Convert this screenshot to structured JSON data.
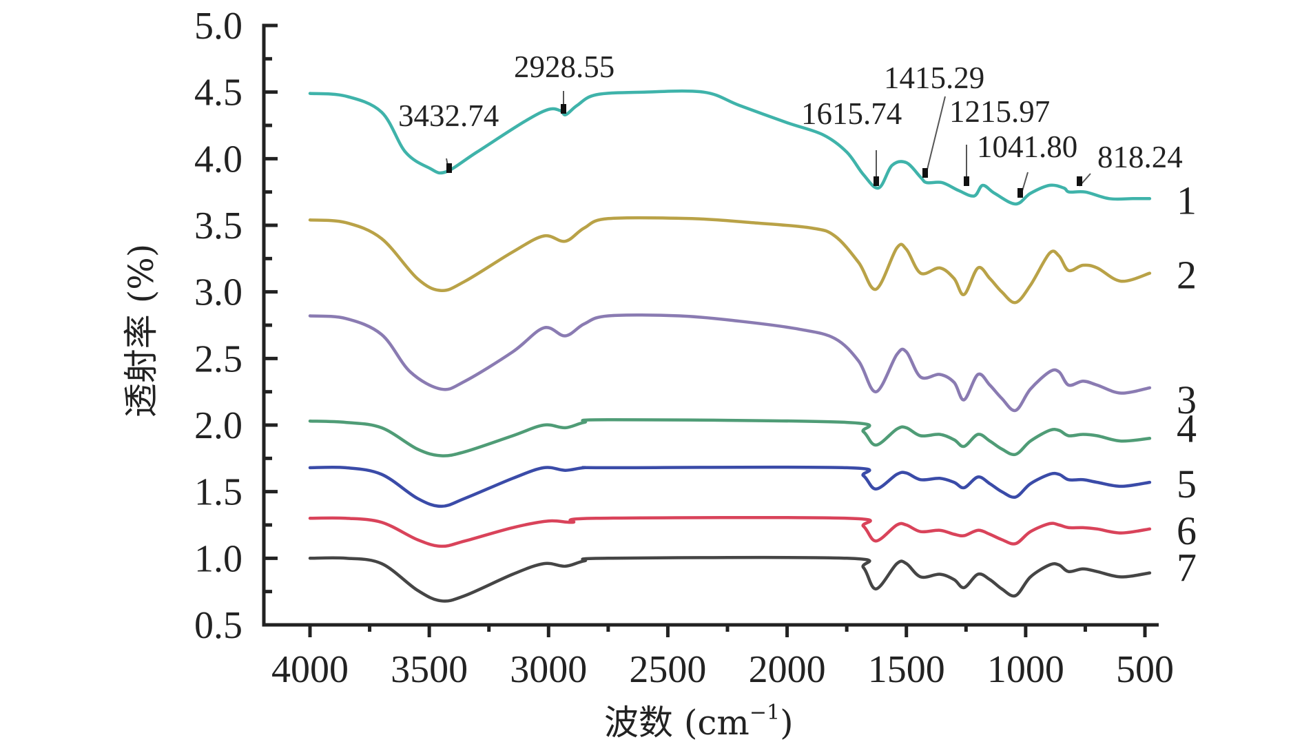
{
  "chart_data": {
    "type": "line",
    "title": "",
    "xlabel": "波数 (cm⁻¹)",
    "xlabel_main": "波数 (cm",
    "xlabel_sup": "−1",
    "xlabel_close": ")",
    "ylabel": "透射率 (%)",
    "xlim": [
      4000,
      500
    ],
    "x_reversed": true,
    "ylim": [
      0.5,
      5.0
    ],
    "grid": false,
    "legend": "inline-right",
    "x_ticks": [
      4000,
      3500,
      3000,
      2500,
      2000,
      1500,
      1000,
      500
    ],
    "x_tick_labels": [
      "4000",
      "3500",
      "3000",
      "2500",
      "2000",
      "1500",
      "1000",
      "500"
    ],
    "y_ticks": [
      5.0,
      4.5,
      4.0,
      3.5,
      3.0,
      2.5,
      2.0,
      1.5,
      1.0,
      0.5
    ],
    "y_tick_labels": [
      "5.0",
      "4.5",
      "4.0",
      "3.5",
      "3.0",
      "2.5",
      "2.0",
      "1.5",
      "1.0",
      "0.5"
    ],
    "series": [
      {
        "name": "1",
        "color": "#3fb3aa",
        "points": [
          [
            4000,
            4.49
          ],
          [
            3850,
            4.47
          ],
          [
            3700,
            4.35
          ],
          [
            3600,
            4.05
          ],
          [
            3500,
            3.93
          ],
          [
            3432,
            3.9
          ],
          [
            3300,
            4.05
          ],
          [
            3100,
            4.28
          ],
          [
            3000,
            4.37
          ],
          [
            2950,
            4.36
          ],
          [
            2928,
            4.33
          ],
          [
            2880,
            4.4
          ],
          [
            2800,
            4.48
          ],
          [
            2600,
            4.5
          ],
          [
            2350,
            4.5
          ],
          [
            2200,
            4.4
          ],
          [
            2000,
            4.27
          ],
          [
            1850,
            4.18
          ],
          [
            1750,
            4.05
          ],
          [
            1680,
            3.88
          ],
          [
            1616,
            3.78
          ],
          [
            1560,
            3.95
          ],
          [
            1500,
            3.97
          ],
          [
            1440,
            3.86
          ],
          [
            1415,
            3.82
          ],
          [
            1350,
            3.82
          ],
          [
            1280,
            3.76
          ],
          [
            1216,
            3.72
          ],
          [
            1180,
            3.8
          ],
          [
            1130,
            3.74
          ],
          [
            1042,
            3.66
          ],
          [
            980,
            3.74
          ],
          [
            900,
            3.8
          ],
          [
            840,
            3.78
          ],
          [
            818,
            3.75
          ],
          [
            750,
            3.75
          ],
          [
            650,
            3.7
          ],
          [
            550,
            3.7
          ],
          [
            480,
            3.7
          ]
        ]
      },
      {
        "name": "2",
        "color": "#b9a247",
        "points": [
          [
            4000,
            3.54
          ],
          [
            3850,
            3.52
          ],
          [
            3700,
            3.4
          ],
          [
            3550,
            3.1
          ],
          [
            3450,
            3.01
          ],
          [
            3350,
            3.08
          ],
          [
            3150,
            3.3
          ],
          [
            3020,
            3.42
          ],
          [
            2930,
            3.38
          ],
          [
            2850,
            3.48
          ],
          [
            2750,
            3.55
          ],
          [
            2400,
            3.55
          ],
          [
            2150,
            3.52
          ],
          [
            1900,
            3.48
          ],
          [
            1800,
            3.42
          ],
          [
            1700,
            3.22
          ],
          [
            1627,
            3.02
          ],
          [
            1540,
            3.33
          ],
          [
            1500,
            3.32
          ],
          [
            1440,
            3.14
          ],
          [
            1360,
            3.18
          ],
          [
            1300,
            3.1
          ],
          [
            1258,
            2.98
          ],
          [
            1200,
            3.18
          ],
          [
            1150,
            3.1
          ],
          [
            1100,
            3.0
          ],
          [
            1042,
            2.92
          ],
          [
            980,
            3.05
          ],
          [
            900,
            3.29
          ],
          [
            860,
            3.27
          ],
          [
            820,
            3.16
          ],
          [
            760,
            3.2
          ],
          [
            700,
            3.18
          ],
          [
            600,
            3.08
          ],
          [
            480,
            3.14
          ]
        ]
      },
      {
        "name": "3",
        "color": "#8a7bb2",
        "points": [
          [
            4000,
            2.82
          ],
          [
            3850,
            2.8
          ],
          [
            3700,
            2.68
          ],
          [
            3580,
            2.4
          ],
          [
            3450,
            2.27
          ],
          [
            3350,
            2.33
          ],
          [
            3150,
            2.55
          ],
          [
            3020,
            2.73
          ],
          [
            2930,
            2.67
          ],
          [
            2850,
            2.76
          ],
          [
            2750,
            2.82
          ],
          [
            2450,
            2.82
          ],
          [
            2200,
            2.78
          ],
          [
            1950,
            2.72
          ],
          [
            1800,
            2.65
          ],
          [
            1700,
            2.48
          ],
          [
            1627,
            2.25
          ],
          [
            1540,
            2.53
          ],
          [
            1500,
            2.55
          ],
          [
            1440,
            2.36
          ],
          [
            1360,
            2.38
          ],
          [
            1300,
            2.32
          ],
          [
            1258,
            2.19
          ],
          [
            1200,
            2.38
          ],
          [
            1150,
            2.3
          ],
          [
            1100,
            2.2
          ],
          [
            1042,
            2.11
          ],
          [
            980,
            2.27
          ],
          [
            900,
            2.4
          ],
          [
            860,
            2.4
          ],
          [
            820,
            2.3
          ],
          [
            760,
            2.33
          ],
          [
            700,
            2.3
          ],
          [
            600,
            2.24
          ],
          [
            480,
            2.28
          ]
        ]
      },
      {
        "name": "4",
        "color": "#4f9c76",
        "points": [
          [
            4000,
            2.03
          ],
          [
            3850,
            2.02
          ],
          [
            3700,
            1.98
          ],
          [
            3550,
            1.82
          ],
          [
            3450,
            1.77
          ],
          [
            3350,
            1.8
          ],
          [
            3150,
            1.92
          ],
          [
            3020,
            2.0
          ],
          [
            2930,
            1.98
          ],
          [
            2850,
            2.02
          ],
          [
            2750,
            2.04
          ],
          [
            1750,
            2.02
          ],
          [
            1680,
            1.95
          ],
          [
            1627,
            1.85
          ],
          [
            1540,
            1.97
          ],
          [
            1500,
            1.98
          ],
          [
            1440,
            1.92
          ],
          [
            1360,
            1.93
          ],
          [
            1300,
            1.89
          ],
          [
            1258,
            1.84
          ],
          [
            1200,
            1.93
          ],
          [
            1150,
            1.88
          ],
          [
            1100,
            1.82
          ],
          [
            1042,
            1.78
          ],
          [
            980,
            1.88
          ],
          [
            900,
            1.96
          ],
          [
            860,
            1.96
          ],
          [
            820,
            1.92
          ],
          [
            760,
            1.93
          ],
          [
            700,
            1.92
          ],
          [
            600,
            1.88
          ],
          [
            480,
            1.9
          ]
        ]
      },
      {
        "name": "5",
        "color": "#3a4ba8",
        "points": [
          [
            4000,
            1.68
          ],
          [
            3850,
            1.68
          ],
          [
            3700,
            1.63
          ],
          [
            3550,
            1.45
          ],
          [
            3450,
            1.39
          ],
          [
            3350,
            1.45
          ],
          [
            3150,
            1.6
          ],
          [
            3020,
            1.68
          ],
          [
            2930,
            1.66
          ],
          [
            2850,
            1.68
          ],
          [
            2750,
            1.68
          ],
          [
            1750,
            1.68
          ],
          [
            1680,
            1.62
          ],
          [
            1627,
            1.52
          ],
          [
            1540,
            1.63
          ],
          [
            1500,
            1.64
          ],
          [
            1440,
            1.59
          ],
          [
            1360,
            1.6
          ],
          [
            1300,
            1.57
          ],
          [
            1258,
            1.53
          ],
          [
            1200,
            1.61
          ],
          [
            1150,
            1.56
          ],
          [
            1100,
            1.5
          ],
          [
            1042,
            1.46
          ],
          [
            980,
            1.56
          ],
          [
            900,
            1.63
          ],
          [
            860,
            1.63
          ],
          [
            820,
            1.59
          ],
          [
            760,
            1.59
          ],
          [
            700,
            1.57
          ],
          [
            600,
            1.54
          ],
          [
            480,
            1.57
          ]
        ]
      },
      {
        "name": "6",
        "color": "#d9435a",
        "points": [
          [
            4000,
            1.3
          ],
          [
            3850,
            1.3
          ],
          [
            3700,
            1.27
          ],
          [
            3550,
            1.14
          ],
          [
            3450,
            1.09
          ],
          [
            3350,
            1.13
          ],
          [
            3150,
            1.23
          ],
          [
            3000,
            1.28
          ],
          [
            2900,
            1.27
          ],
          [
            2800,
            1.3
          ],
          [
            1750,
            1.3
          ],
          [
            1680,
            1.24
          ],
          [
            1627,
            1.13
          ],
          [
            1540,
            1.25
          ],
          [
            1500,
            1.25
          ],
          [
            1440,
            1.2
          ],
          [
            1360,
            1.21
          ],
          [
            1300,
            1.18
          ],
          [
            1258,
            1.17
          ],
          [
            1200,
            1.21
          ],
          [
            1150,
            1.18
          ],
          [
            1100,
            1.14
          ],
          [
            1042,
            1.11
          ],
          [
            980,
            1.2
          ],
          [
            900,
            1.26
          ],
          [
            860,
            1.25
          ],
          [
            820,
            1.23
          ],
          [
            760,
            1.23
          ],
          [
            700,
            1.22
          ],
          [
            600,
            1.19
          ],
          [
            480,
            1.22
          ]
        ]
      },
      {
        "name": "7",
        "color": "#454545",
        "points": [
          [
            4000,
            1.0
          ],
          [
            3850,
            1.0
          ],
          [
            3700,
            0.96
          ],
          [
            3550,
            0.76
          ],
          [
            3450,
            0.68
          ],
          [
            3350,
            0.72
          ],
          [
            3150,
            0.88
          ],
          [
            3020,
            0.96
          ],
          [
            2930,
            0.94
          ],
          [
            2850,
            0.98
          ],
          [
            2750,
            1.0
          ],
          [
            1750,
            1.0
          ],
          [
            1680,
            0.93
          ],
          [
            1627,
            0.77
          ],
          [
            1540,
            0.96
          ],
          [
            1500,
            0.96
          ],
          [
            1440,
            0.86
          ],
          [
            1360,
            0.88
          ],
          [
            1300,
            0.84
          ],
          [
            1258,
            0.78
          ],
          [
            1200,
            0.88
          ],
          [
            1150,
            0.84
          ],
          [
            1100,
            0.77
          ],
          [
            1042,
            0.72
          ],
          [
            980,
            0.86
          ],
          [
            900,
            0.95
          ],
          [
            860,
            0.95
          ],
          [
            820,
            0.9
          ],
          [
            760,
            0.92
          ],
          [
            700,
            0.9
          ],
          [
            600,
            0.86
          ],
          [
            480,
            0.89
          ]
        ]
      }
    ],
    "annotations": [
      {
        "text": "3432.74",
        "x": 3432.74,
        "y": 3.9,
        "series": "1"
      },
      {
        "text": "2928.55",
        "x": 2928.55,
        "y": 4.33,
        "series": "1"
      },
      {
        "text": "1615.74",
        "x": 1615.74,
        "y": 3.78,
        "series": "1"
      },
      {
        "text": "1415.29",
        "x": 1415.29,
        "y": 3.82,
        "series": "1"
      },
      {
        "text": "1215.97",
        "x": 1215.97,
        "y": 3.72,
        "series": "1"
      },
      {
        "text": "1041.80",
        "x": 1041.8,
        "y": 3.66,
        "series": "1"
      },
      {
        "text": "818.24",
        "x": 818.24,
        "y": 3.75,
        "series": "1"
      }
    ]
  }
}
